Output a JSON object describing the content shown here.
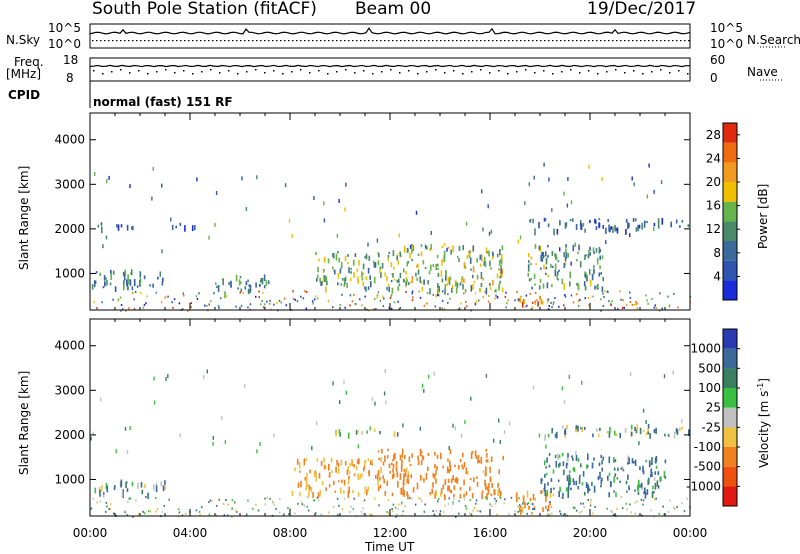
{
  "header": {
    "station": "South Pole Station (fitACF)",
    "beam": "Beam 00",
    "date": "19/Dec/2017"
  },
  "top_panels": {
    "nsky_label": "N.Sky",
    "nsky_ticks": [
      "10^5",
      "10^0"
    ],
    "nsearch_label": "N.Search",
    "nsearch_ticks": [
      "10^5",
      "10^0"
    ],
    "freq_label": "Freq.",
    "freq_unit": "[MHz]",
    "freq_ticks": [
      "18",
      "8"
    ],
    "nave_label": "Nave",
    "nave_ticks": [
      "60",
      "0"
    ],
    "cpid_label": "CPID",
    "cpid_value": "normal (fast) 151 RF"
  },
  "colors": {
    "power_scale": [
      "#1a2bd8",
      "#2f55b0",
      "#3a6a9a",
      "#4a8a6a",
      "#66b44a",
      "#f0c000",
      "#f09a20",
      "#f06a10",
      "#e02a10"
    ],
    "velocity_scale": [
      "#2a3ab0",
      "#3a6a9a",
      "#3a8060",
      "#3ac040",
      "#c0c0c0",
      "#f0c040",
      "#f08020",
      "#f05010",
      "#e01a10"
    ]
  },
  "chart_data": [
    {
      "type": "heatmap",
      "panel": "power",
      "ylabel": "Slant Range [km]",
      "yticks": [
        "1000",
        "2000",
        "3000",
        "4000"
      ],
      "ylim": [
        180,
        4600
      ],
      "colorbar_label": "Power [dB]",
      "colorbar_ticks": [
        "4",
        "8",
        "12",
        "16",
        "20",
        "24",
        "28"
      ],
      "clim": [
        0,
        30
      ],
      "xticks": [
        "00:00",
        "04:00",
        "08:00",
        "12:00",
        "16:00",
        "20:00",
        "00:00"
      ],
      "xlabel": "Time UT",
      "echo_regions": [
        {
          "t0": 0.0,
          "t1": 2.5,
          "r0": 2050,
          "r1": 2150,
          "value": 6
        },
        {
          "t0": 3.2,
          "t1": 4.8,
          "r0": 2050,
          "r1": 2150,
          "value": 6
        },
        {
          "t0": 0.0,
          "t1": 3.0,
          "r0": 700,
          "r1": 1100,
          "value": 10
        },
        {
          "t0": 5.0,
          "t1": 7.2,
          "r0": 600,
          "r1": 1000,
          "value": 11
        },
        {
          "t0": 9.0,
          "t1": 12.0,
          "r0": 700,
          "r1": 1500,
          "value": 14
        },
        {
          "t0": 12.0,
          "t1": 16.5,
          "r0": 650,
          "r1": 1700,
          "value": 15
        },
        {
          "t0": 17.5,
          "t1": 20.5,
          "r0": 700,
          "r1": 1700,
          "value": 12
        },
        {
          "t0": 17.5,
          "t1": 24.0,
          "r0": 2000,
          "r1": 2250,
          "value": 7
        },
        {
          "t0": 17.0,
          "t1": 18.5,
          "r0": 300,
          "r1": 500,
          "value": 22
        }
      ]
    },
    {
      "type": "heatmap",
      "panel": "velocity",
      "ylabel": "Slant Range [km]",
      "yticks": [
        "1000",
        "2000",
        "3000",
        "4000"
      ],
      "ylim": [
        180,
        4600
      ],
      "colorbar_label": "Velocity [m s",
      "colorbar_label_sup": "-1",
      "colorbar_label_end": "]",
      "colorbar_ticks": [
        "1000",
        "500",
        "100",
        "25",
        "-25",
        "-100",
        "-500",
        "-1000"
      ],
      "clim": [
        -1000,
        1000
      ],
      "xticks": [
        "00:00",
        "04:00",
        "08:00",
        "12:00",
        "16:00",
        "20:00",
        "00:00"
      ],
      "xlabel": "Time UT",
      "echo_regions": [
        {
          "t0": 0.0,
          "t1": 3.0,
          "r0": 700,
          "r1": 1000,
          "value": 120
        },
        {
          "t0": 8.0,
          "t1": 11.5,
          "r0": 700,
          "r1": 1500,
          "value": -500
        },
        {
          "t0": 11.5,
          "t1": 16.5,
          "r0": 650,
          "r1": 1700,
          "value": -700
        },
        {
          "t0": 17.0,
          "t1": 18.5,
          "r0": 250,
          "r1": 800,
          "value": -600
        },
        {
          "t0": 18.0,
          "t1": 23.0,
          "r0": 700,
          "r1": 1600,
          "value": 200
        },
        {
          "t0": 9.0,
          "t1": 12.5,
          "r0": 2050,
          "r1": 2150,
          "value": 0
        },
        {
          "t0": 18.0,
          "t1": 24.0,
          "r0": 2000,
          "r1": 2250,
          "value": 0
        }
      ]
    }
  ]
}
